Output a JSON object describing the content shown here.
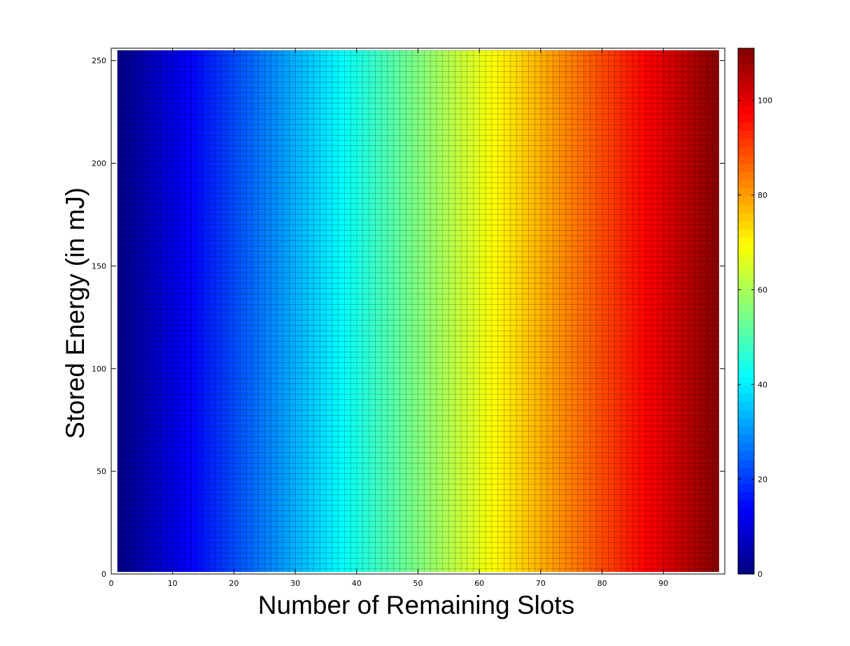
{
  "chart_data": {
    "type": "heatmap",
    "title": "",
    "xlabel": "Number of Remaining Slots",
    "ylabel": "Stored Energy (in mJ)",
    "xlim": [
      0,
      100
    ],
    "ylim": [
      0,
      256
    ],
    "x_range": [
      1,
      99
    ],
    "y_range": [
      1,
      255
    ],
    "xticks": [
      0,
      10,
      20,
      30,
      40,
      50,
      60,
      70,
      80,
      90
    ],
    "yticks": [
      0,
      50,
      100,
      150,
      200,
      250
    ],
    "colorbar": {
      "min": 0,
      "max": 111,
      "ticks": [
        0,
        20,
        40,
        60,
        80,
        100
      ],
      "colormap": "jet"
    },
    "value_model": "value increases approximately linearly with remaining slots, constant across stored energy",
    "value_at_x_min": 1.1,
    "value_at_x_max": 111,
    "grid": false
  }
}
